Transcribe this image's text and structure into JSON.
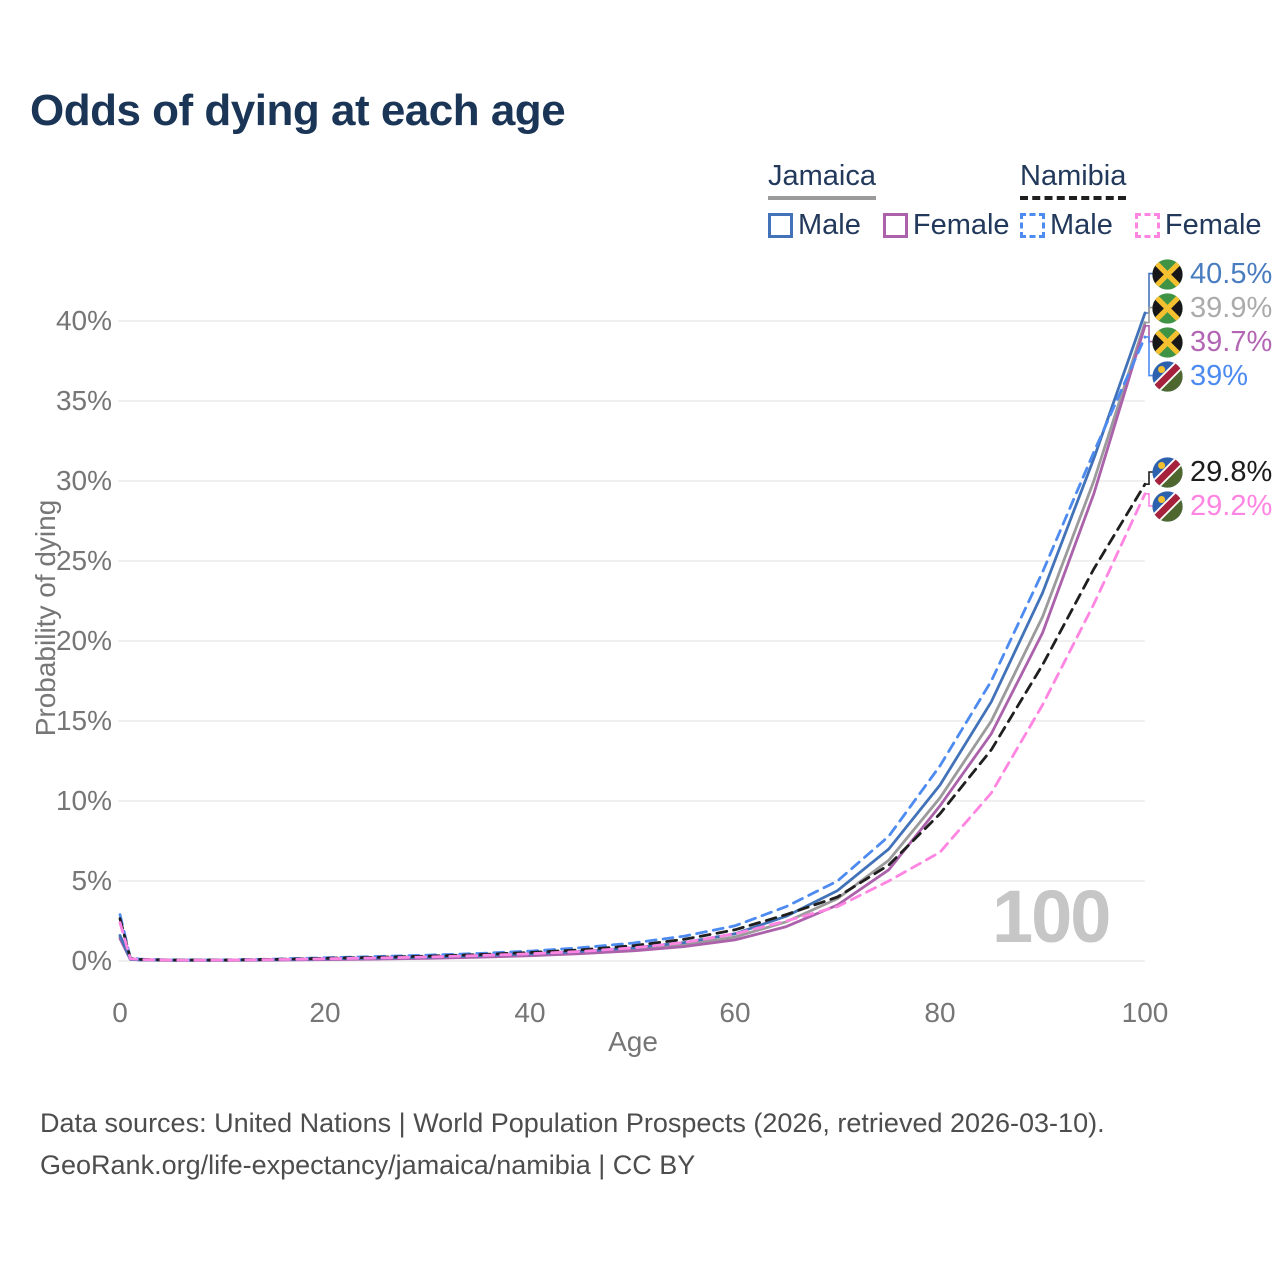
{
  "header": {
    "title": "Odds of dying at each age"
  },
  "legend": {
    "groups": [
      {
        "country": "Jamaica",
        "underline_color": "#9b9b9b",
        "underline_style": "solid",
        "items": [
          {
            "label": "Male",
            "color": "#4273b8",
            "dash": "solid"
          },
          {
            "label": "Female",
            "color": "#ab62ab",
            "dash": "solid"
          }
        ]
      },
      {
        "country": "Namibia",
        "underline_color": "#1f1f1f",
        "underline_style": "dashed",
        "items": [
          {
            "label": "Male",
            "color": "#4e8bf0",
            "dash": "dashed"
          },
          {
            "label": "Female",
            "color": "#ff85e2",
            "dash": "dashed"
          }
        ]
      }
    ]
  },
  "chart_data": {
    "type": "line",
    "title": "Odds of dying at each age",
    "xlabel": "Age",
    "ylabel": "Probability of dying",
    "watermark": "100",
    "xlim": [
      0,
      100
    ],
    "ylim": [
      0,
      42
    ],
    "grid": "horizontal",
    "legend_position": "top-right",
    "x_ticks": [
      {
        "v": 0,
        "label": "0"
      },
      {
        "v": 20,
        "label": "20"
      },
      {
        "v": 40,
        "label": "40"
      },
      {
        "v": 60,
        "label": "60"
      },
      {
        "v": 80,
        "label": "80"
      },
      {
        "v": 100,
        "label": "100"
      }
    ],
    "y_ticks": [
      {
        "v": 0,
        "label": "0%"
      },
      {
        "v": 5,
        "label": "5%"
      },
      {
        "v": 10,
        "label": "10%"
      },
      {
        "v": 15,
        "label": "15%"
      },
      {
        "v": 20,
        "label": "20%"
      },
      {
        "v": 25,
        "label": "25%"
      },
      {
        "v": 30,
        "label": "30%"
      },
      {
        "v": 35,
        "label": "35%"
      },
      {
        "v": 40,
        "label": "40%"
      }
    ],
    "ages": [
      0,
      1,
      2,
      5,
      10,
      15,
      20,
      25,
      30,
      35,
      40,
      45,
      50,
      55,
      60,
      65,
      70,
      75,
      80,
      85,
      90,
      95,
      100
    ],
    "series": [
      {
        "name": "Jamaica Both sexes",
        "country": "Jamaica",
        "sex": "Both",
        "color": "#9b9b9b",
        "dash": "solid",
        "flag": "jamaica",
        "end_label": "39.9%",
        "label_color": "#ababab",
        "values": [
          1.5,
          0.11,
          0.065,
          0.045,
          0.045,
          0.07,
          0.12,
          0.15,
          0.2,
          0.28,
          0.39,
          0.53,
          0.72,
          1.0,
          1.5,
          2.45,
          3.9,
          6.3,
          10.2,
          15.0,
          21.5,
          30.0,
          39.9
        ]
      },
      {
        "name": "Jamaica Female",
        "country": "Jamaica",
        "sex": "Female",
        "color": "#ab62ab",
        "dash": "solid",
        "flag": "jamaica",
        "end_label": "39.7%",
        "label_color": "#b366b3",
        "values": [
          1.4,
          0.1,
          0.06,
          0.04,
          0.04,
          0.055,
          0.09,
          0.12,
          0.17,
          0.24,
          0.33,
          0.46,
          0.63,
          0.9,
          1.32,
          2.15,
          3.5,
          5.7,
          9.7,
          14.2,
          20.5,
          29.2,
          39.7
        ]
      },
      {
        "name": "Jamaica Male",
        "country": "Jamaica",
        "sex": "Male",
        "color": "#4273b8",
        "dash": "solid",
        "flag": "jamaica",
        "end_label": "40.5%",
        "label_color": "#4a7dbf",
        "values": [
          1.6,
          0.12,
          0.07,
          0.05,
          0.05,
          0.08,
          0.14,
          0.18,
          0.24,
          0.33,
          0.45,
          0.6,
          0.82,
          1.15,
          1.7,
          2.8,
          4.4,
          7.0,
          11.0,
          16.2,
          23.0,
          31.4,
          40.5
        ]
      },
      {
        "name": "Namibia Male",
        "country": "Namibia",
        "sex": "Male",
        "color": "#4e8bf0",
        "dash": "dashed",
        "flag": "namibia",
        "end_label": "39%",
        "label_color": "#4e8bf0",
        "values": [
          2.9,
          0.2,
          0.11,
          0.07,
          0.07,
          0.12,
          0.2,
          0.28,
          0.36,
          0.47,
          0.62,
          0.83,
          1.12,
          1.55,
          2.2,
          3.4,
          5.0,
          7.8,
          12.2,
          17.5,
          24.3,
          31.8,
          39.0
        ]
      },
      {
        "name": "Namibia Both sexes",
        "country": "Namibia",
        "sex": "Both",
        "color": "#1f1f1f",
        "dash": "dashed",
        "flag": "namibia",
        "end_label": "29.8%",
        "label_color": "#1c1c1c",
        "values": [
          2.65,
          0.17,
          0.1,
          0.06,
          0.06,
          0.1,
          0.17,
          0.23,
          0.3,
          0.4,
          0.53,
          0.7,
          0.95,
          1.35,
          1.95,
          2.9,
          4.0,
          6.0,
          9.2,
          13.2,
          18.5,
          24.5,
          29.8
        ]
      },
      {
        "name": "Namibia Female",
        "country": "Namibia",
        "sex": "Female",
        "color": "#ff85e2",
        "dash": "dashed",
        "flag": "namibia",
        "end_label": "29.2%",
        "label_color": "#ff85e2",
        "values": [
          2.4,
          0.15,
          0.09,
          0.055,
          0.055,
          0.09,
          0.14,
          0.19,
          0.25,
          0.34,
          0.45,
          0.6,
          0.82,
          1.15,
          1.7,
          2.5,
          3.4,
          5.0,
          6.8,
          10.5,
          16.0,
          22.3,
          29.2
        ]
      }
    ]
  },
  "footer": {
    "line1": "Data sources: United Nations | World Population Prospects (2026, retrieved 2026-03-10).",
    "line2": "GeoRank.org/life-expectancy/jamaica/namibia | CC BY"
  }
}
